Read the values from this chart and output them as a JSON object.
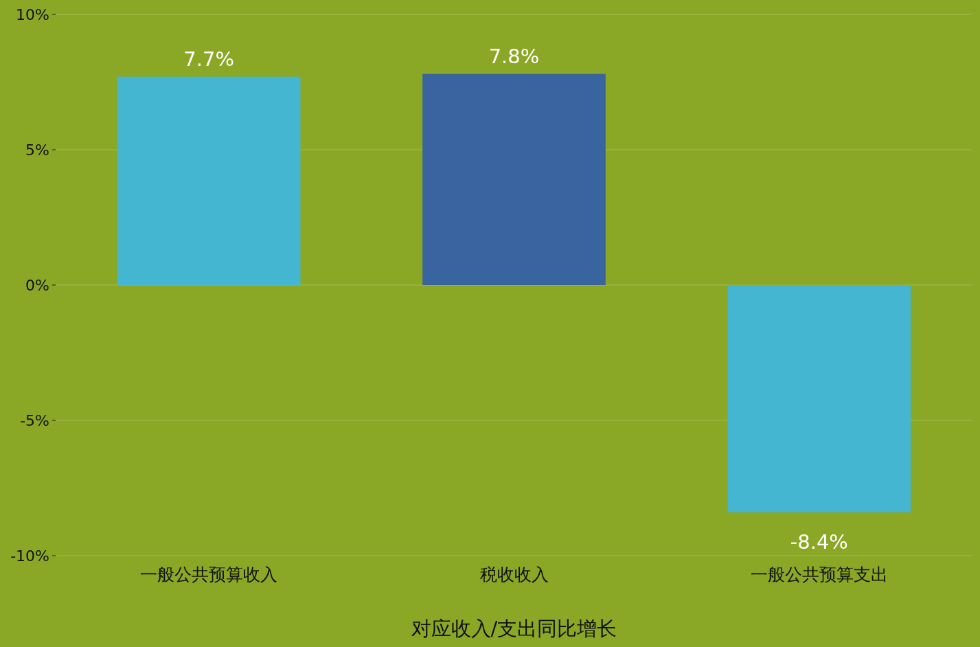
{
  "chart_data": {
    "type": "bar",
    "xlabel": "对应收入/支出同比增长",
    "categories": [
      "一般公共预算收入",
      "税收收入",
      "一般公共预算支出"
    ],
    "values": [
      7.7,
      7.8,
      -8.4
    ],
    "colors": [
      "#45b6d2",
      "#3a64a0",
      "#45b6d2"
    ],
    "value_labels": [
      "7.7%",
      "7.8%",
      "-8.4%"
    ],
    "ylim": [
      -10,
      10
    ],
    "yticks": [
      {
        "value": -10,
        "label": "-10%"
      },
      {
        "value": -5,
        "label": "-5%"
      },
      {
        "value": 0,
        "label": "0%"
      },
      {
        "value": 5,
        "label": "5%"
      },
      {
        "value": 10,
        "label": "10%"
      }
    ],
    "grid": "y"
  }
}
